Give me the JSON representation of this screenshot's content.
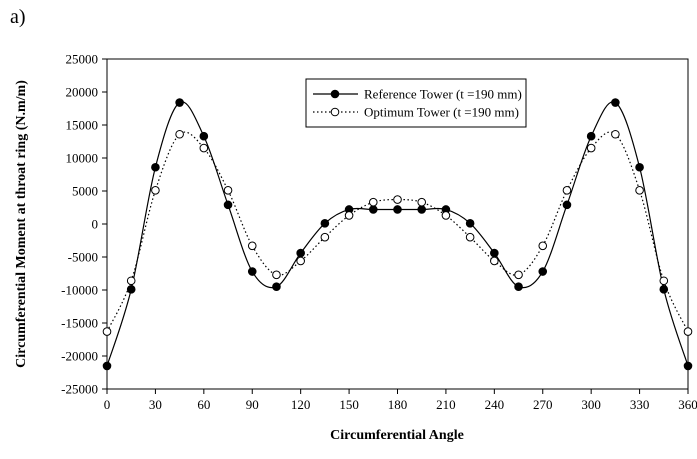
{
  "panel_label": "a)",
  "chart_data": {
    "type": "line",
    "xlabel": "Circumferential Angle",
    "ylabel": "Circumferential Moment at throat ring (N.m/m)",
    "xlim": [
      0,
      360
    ],
    "ylim": [
      -25000,
      25000
    ],
    "xticks": [
      0,
      30,
      60,
      90,
      120,
      150,
      180,
      210,
      240,
      270,
      300,
      330,
      360
    ],
    "yticks": [
      -25000,
      -20000,
      -15000,
      -10000,
      -5000,
      0,
      5000,
      10000,
      15000,
      20000,
      25000
    ],
    "grid": false,
    "legend_position": "top-center",
    "series": [
      {
        "name": "Reference Tower (t =190 mm)",
        "marker": "filled-circle",
        "line_style": "solid",
        "color": "#000000",
        "x": [
          0,
          15,
          30,
          45,
          60,
          75,
          90,
          105,
          120,
          135,
          150,
          165,
          180,
          195,
          210,
          225,
          240,
          255,
          270,
          285,
          300,
          315,
          330,
          345,
          360
        ],
        "y": [
          -21500,
          -9900,
          8600,
          18400,
          13300,
          2900,
          -7200,
          -9500,
          -4400,
          100,
          2200,
          2200,
          2200,
          2200,
          2200,
          100,
          -4400,
          -9500,
          -7200,
          2900,
          13300,
          18400,
          8600,
          -9900,
          -21500
        ]
      },
      {
        "name": "Optimum Tower (t =190 mm)",
        "marker": "open-circle",
        "line_style": "dotted",
        "color": "#000000",
        "x": [
          0,
          15,
          30,
          45,
          60,
          75,
          90,
          105,
          120,
          135,
          150,
          165,
          180,
          195,
          210,
          225,
          240,
          255,
          270,
          285,
          300,
          315,
          330,
          345,
          360
        ],
        "y": [
          -16300,
          -8600,
          5100,
          13600,
          11500,
          5100,
          -3300,
          -7700,
          -5600,
          -2000,
          1300,
          3300,
          3700,
          3300,
          1300,
          -2000,
          -5600,
          -7700,
          -3300,
          5100,
          11500,
          13600,
          5100,
          -8600,
          -16300
        ]
      }
    ]
  }
}
